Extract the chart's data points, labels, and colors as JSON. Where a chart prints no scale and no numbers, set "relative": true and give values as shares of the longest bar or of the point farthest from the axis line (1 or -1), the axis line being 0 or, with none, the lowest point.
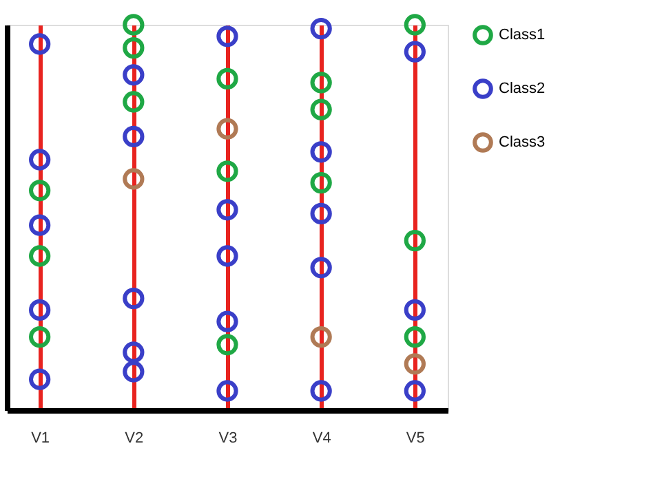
{
  "chart_data": {
    "type": "scatter",
    "relative": true,
    "categories": [
      "V1",
      "V2",
      "V3",
      "V4",
      "V5"
    ],
    "grid": "x",
    "legend": "top right",
    "marker": "circle",
    "series": [
      {
        "name": "Class1",
        "color": "#1fa845",
        "x": [
          "V1",
          "V1",
          "V1",
          "V2",
          "V2",
          "V2",
          "V3",
          "V3",
          "V3",
          "V4",
          "V4",
          "V4",
          "V5",
          "V5",
          "V5"
        ],
        "values": [
          0.57,
          0.4,
          0.19,
          1.0,
          0.94,
          0.8,
          0.86,
          0.62,
          0.17,
          0.85,
          0.78,
          0.59,
          1.0,
          0.44,
          0.19
        ]
      },
      {
        "name": "Class2",
        "color": "#3a3fc8",
        "x": [
          "V1",
          "V1",
          "V1",
          "V1",
          "V1",
          "V2",
          "V2",
          "V2",
          "V2",
          "V2",
          "V3",
          "V3",
          "V3",
          "V3",
          "V3",
          "V4",
          "V4",
          "V4",
          "V4",
          "V4",
          "V5",
          "V5",
          "V5"
        ],
        "values": [
          0.95,
          0.65,
          0.48,
          0.26,
          0.08,
          0.87,
          0.71,
          0.29,
          0.15,
          0.1,
          0.97,
          0.52,
          0.4,
          0.23,
          0.05,
          0.99,
          0.67,
          0.51,
          0.37,
          0.05,
          0.93,
          0.26,
          0.05
        ]
      },
      {
        "name": "Class3",
        "color": "#b07a55",
        "x": [
          "V2",
          "V3",
          "V4",
          "V5"
        ],
        "values": [
          0.6,
          0.73,
          0.19,
          0.12
        ]
      }
    ]
  }
}
